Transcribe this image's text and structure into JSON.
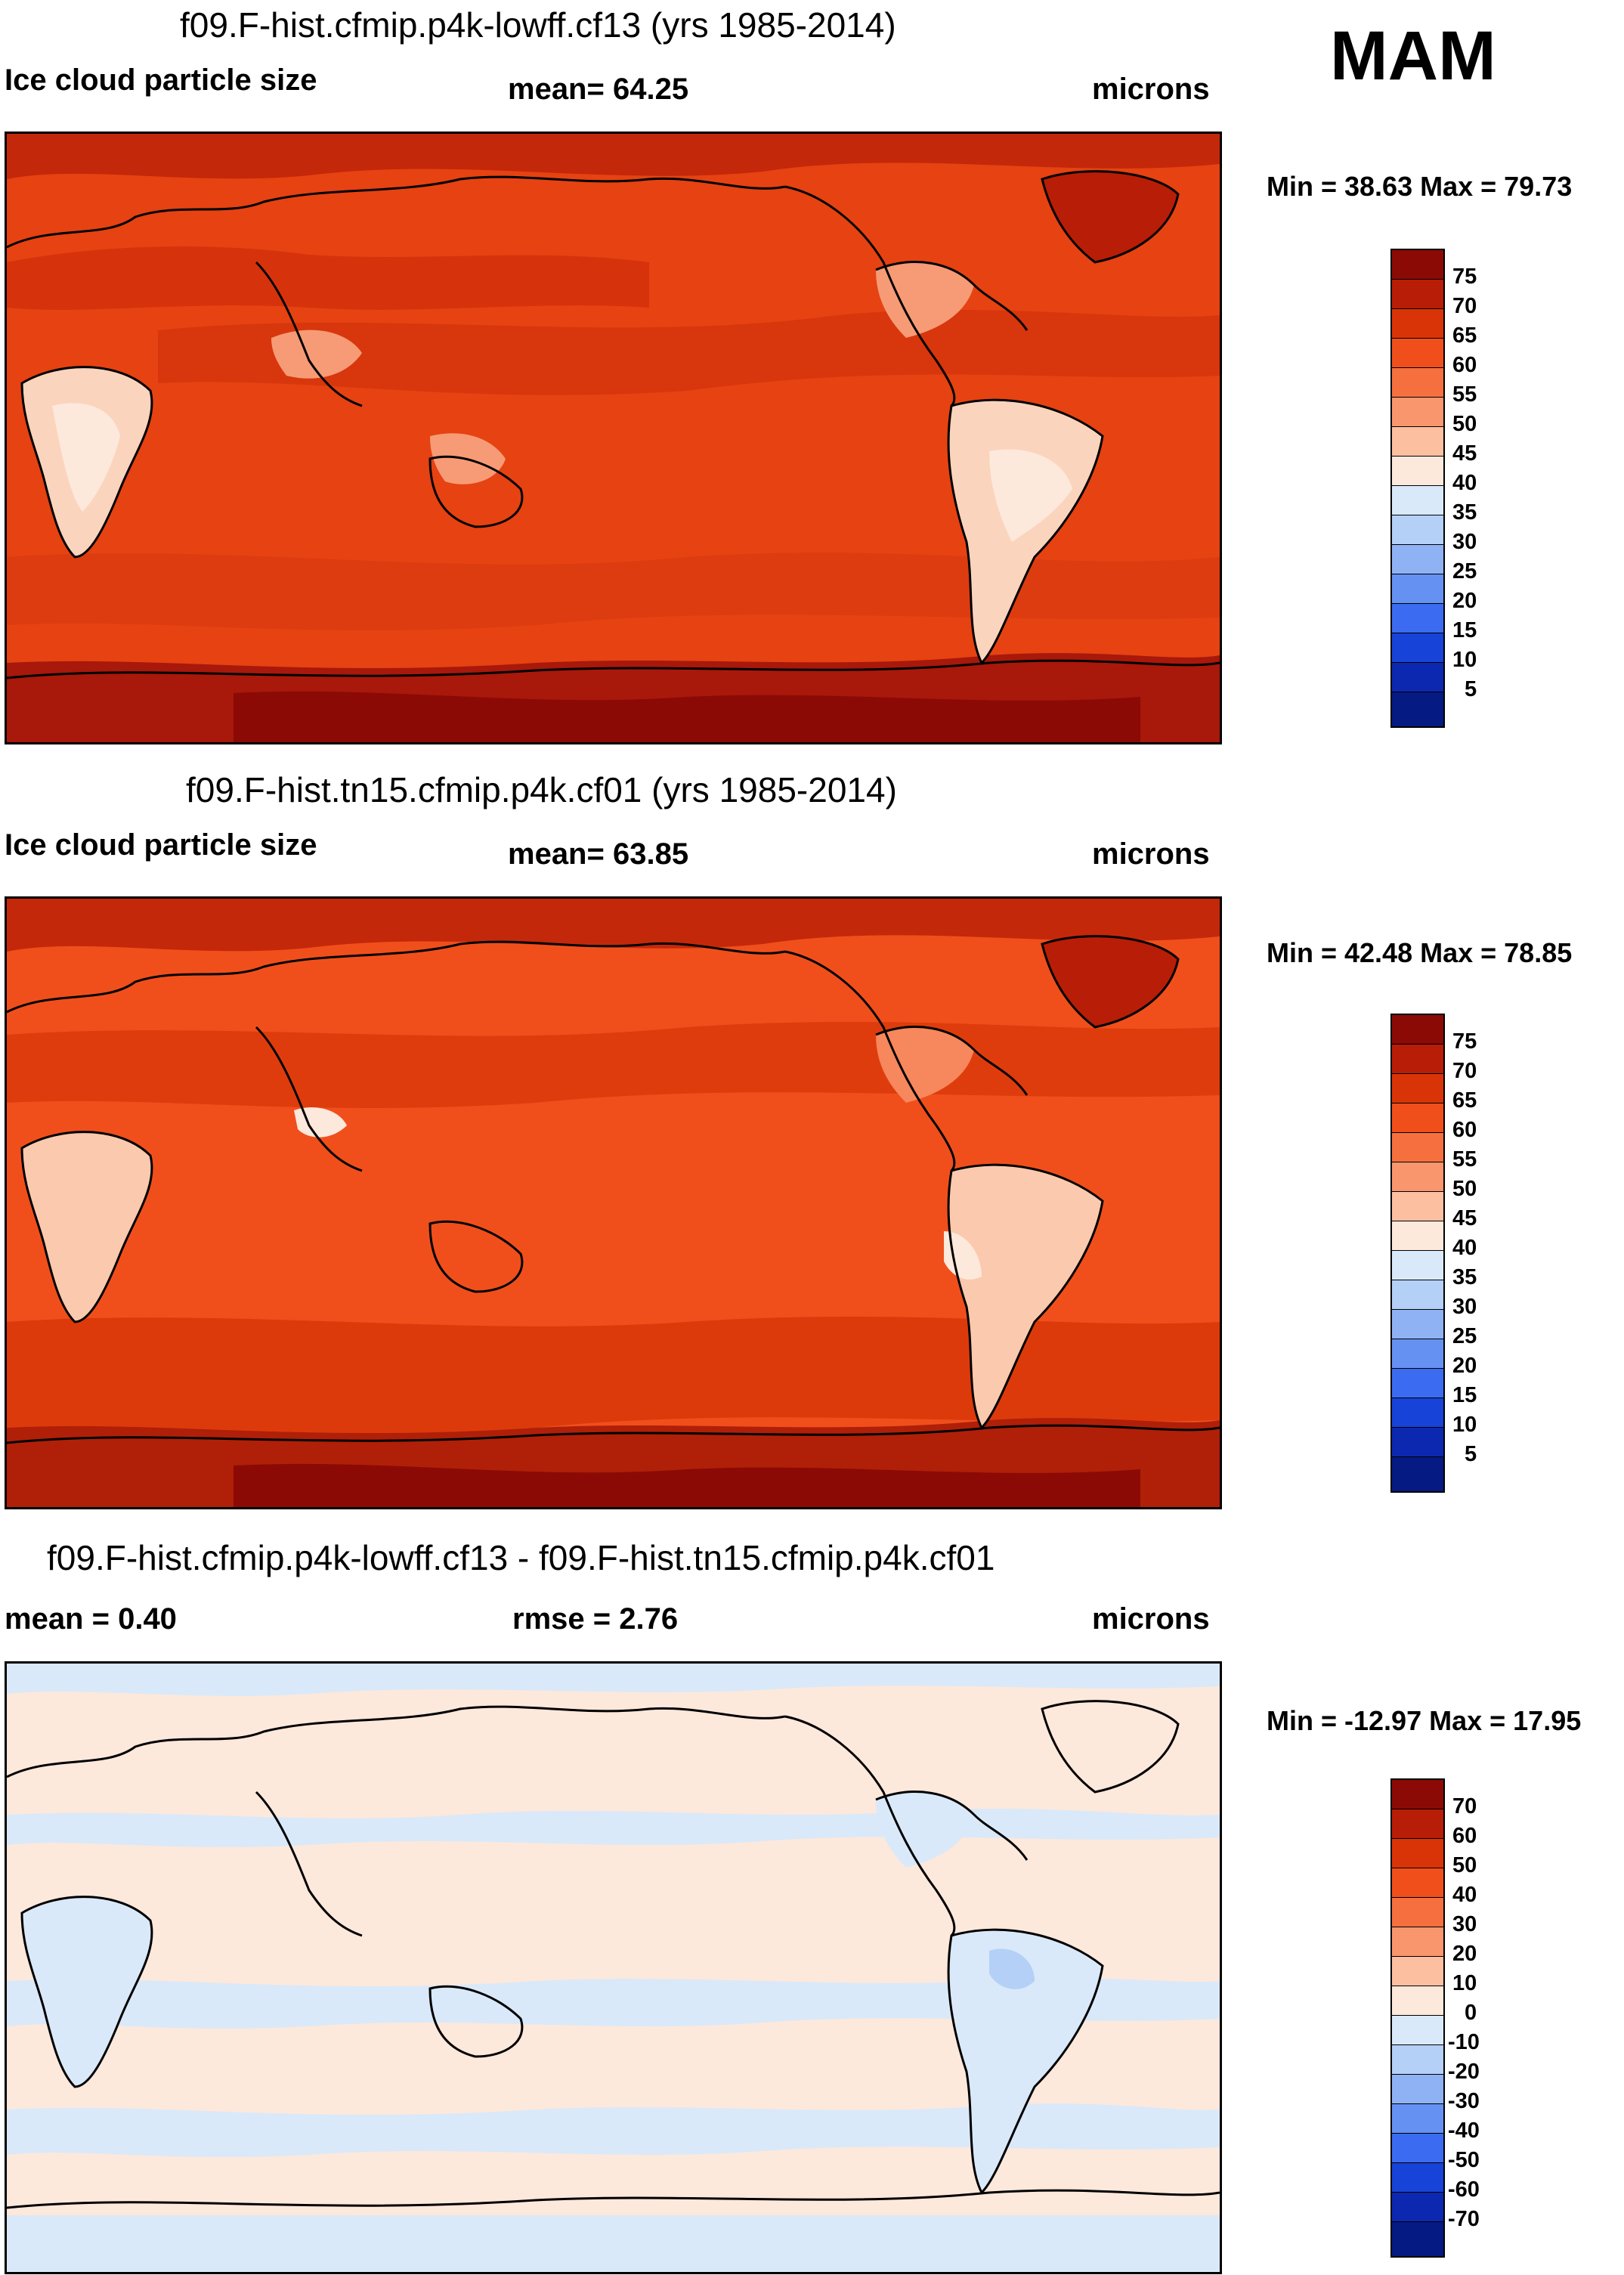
{
  "season": "MAM",
  "panels": [
    {
      "title": "f09.F-hist.cfmip.p4k-lowff.cf13 (yrs 1985-2014)",
      "left_label": "Ice cloud particle size",
      "center_label": "mean=  64.25",
      "right_label": "microns",
      "minmax": "Min =  38.63 Max =  79.73",
      "colorbar_labels": [
        "75",
        "70",
        "65",
        "60",
        "55",
        "50",
        "45",
        "40",
        "35",
        "30",
        "25",
        "20",
        "15",
        "10",
        "5"
      ],
      "colorbar_colors": [
        "#8b0a05",
        "#b81d07",
        "#d93407",
        "#f04f1c",
        "#f6703f",
        "#f9966e",
        "#fcc0a1",
        "#fde8dc",
        "#d9e9f9",
        "#b5d0f7",
        "#8fb2f5",
        "#6591f3",
        "#3b6bf0",
        "#1843d8",
        "#0c28b0",
        "#051a82"
      ],
      "map_colors": {
        "ocean": "#e64212",
        "ocean_dark": "#d22f0b",
        "land_pale": "#fbd4bd",
        "land_mid": "#f69b76",
        "polar": "#a8180b"
      },
      "contour_levels": [
        5,
        10,
        15,
        20,
        25,
        30,
        35,
        40,
        45,
        50,
        55,
        60,
        65,
        70,
        75
      ]
    },
    {
      "title": "f09.F-hist.tn15.cfmip.p4k.cf01 (yrs 1985-2014)",
      "left_label": "Ice cloud particle size",
      "center_label": "mean=  63.85",
      "right_label": "microns",
      "minmax": "Min =  42.48 Max =  78.85",
      "colorbar_labels": [
        "75",
        "70",
        "65",
        "60",
        "55",
        "50",
        "45",
        "40",
        "35",
        "30",
        "25",
        "20",
        "15",
        "10",
        "5"
      ],
      "colorbar_colors": [
        "#8b0a05",
        "#b81d07",
        "#d93407",
        "#f04f1c",
        "#f6703f",
        "#f9966e",
        "#fcc0a1",
        "#fde8dc",
        "#d9e9f9",
        "#b5d0f7",
        "#8fb2f5",
        "#6591f3",
        "#3b6bf0",
        "#1843d8",
        "#0c28b0",
        "#051a82"
      ],
      "map_colors": {
        "ocean": "#f04f1c",
        "ocean_dark": "#dd3a0c",
        "land_pale": "#fbc9ad",
        "land_mid": "#f7875c",
        "polar": "#b01f08"
      },
      "contour_levels": [
        5,
        10,
        15,
        20,
        25,
        30,
        35,
        40,
        45,
        50,
        55,
        60,
        65,
        70,
        75
      ]
    },
    {
      "title": "f09.F-hist.cfmip.p4k-lowff.cf13 - f09.F-hist.tn15.cfmip.p4k.cf01",
      "left_label": "mean =   0.40",
      "center_label": "rmse =   2.76",
      "right_label": "microns",
      "minmax": "Min = -12.97 Max =  17.95",
      "colorbar_labels": [
        "70",
        "60",
        "50",
        "40",
        "30",
        "20",
        "10",
        "0",
        "-10",
        "-20",
        "-30",
        "-40",
        "-50",
        "-60",
        "-70"
      ],
      "colorbar_colors": [
        "#8b0a05",
        "#b81d07",
        "#d93407",
        "#f04f1c",
        "#f6703f",
        "#f9966e",
        "#fcc0a1",
        "#fde8dc",
        "#d9e9f9",
        "#b5d0f7",
        "#8fb2f5",
        "#6591f3",
        "#3b6bf0",
        "#1843d8",
        "#0c28b0",
        "#051a82"
      ],
      "map_colors": {
        "ocean": "#fde8dc",
        "ocean_dark": "#fde8dc",
        "land_pale": "#d9e9f9",
        "land_mid": "#d9e9f9",
        "polar": "#d9e9f9"
      },
      "contour_levels": [
        -70,
        -60,
        -50,
        -40,
        -30,
        -20,
        -10,
        0,
        10,
        20,
        30,
        40,
        50,
        60,
        70
      ]
    }
  ]
}
